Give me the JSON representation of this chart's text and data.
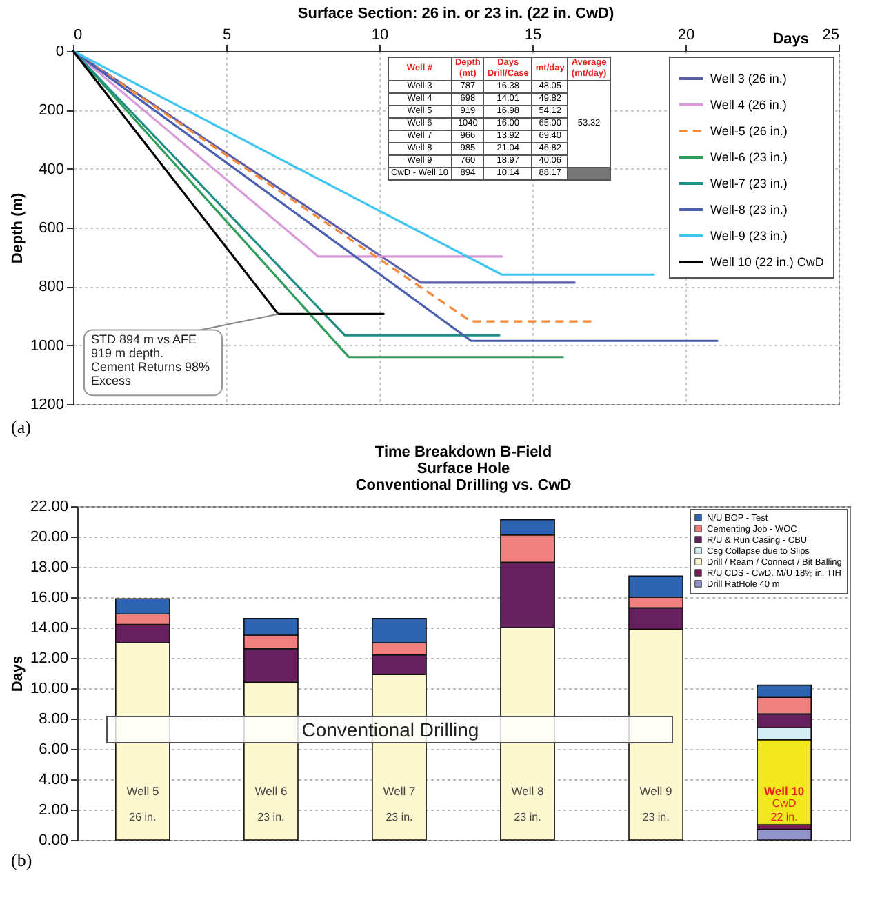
{
  "chart_data": [
    {
      "type": "line",
      "title": "Surface Section: 26 in. or 23 in. (22 in. CwD)",
      "xlabel": "Days",
      "ylabel": "Depth (m)",
      "xlim": [
        0,
        25
      ],
      "xticks": [
        0,
        5,
        10,
        15,
        20,
        25
      ],
      "ylim": [
        1200,
        0
      ],
      "yticks": [
        0,
        200,
        400,
        600,
        800,
        1000,
        1200
      ],
      "grid": true,
      "legend": "top right",
      "series": [
        {
          "name": "Well 3 (26 in.)",
          "color": "#5b5fa8",
          "line_style": "solid",
          "x": [
            0,
            11.35,
            16.38
          ],
          "values": [
            0,
            787,
            787
          ]
        },
        {
          "name": "Well 4 (26 in.)",
          "color": "#d99ad9",
          "line_style": "solid",
          "x": [
            0,
            8.0,
            14.01
          ],
          "values": [
            0,
            698,
            698
          ]
        },
        {
          "name": "Well-5 (26 in.)",
          "color": "#f58a3c",
          "line_style": "dashed",
          "x": [
            0,
            13.0,
            16.98
          ],
          "values": [
            0,
            919,
            919
          ]
        },
        {
          "name": "Well-6 (23 in.)",
          "color": "#2e9e5a",
          "line_style": "solid",
          "x": [
            0,
            9.0,
            16.0
          ],
          "values": [
            0,
            1040,
            1040
          ]
        },
        {
          "name": "Well-7 (23 in.)",
          "color": "#1f8f86",
          "line_style": "solid",
          "x": [
            0,
            8.87,
            13.92
          ],
          "values": [
            0,
            966,
            966
          ]
        },
        {
          "name": "Well-8 (23 in.)",
          "color": "#4a5fb0",
          "line_style": "solid",
          "x": [
            0,
            13.0,
            21.04
          ],
          "values": [
            0,
            985,
            985
          ]
        },
        {
          "name": "Well-9 (23 in.)",
          "color": "#3fc6f0",
          "line_style": "solid",
          "x": [
            0,
            14.0,
            18.97
          ],
          "values": [
            0,
            760,
            760
          ]
        },
        {
          "name": "Well 10 (22 in.) CwD",
          "color": "#000000",
          "line_style": "solid",
          "x": [
            0,
            6.7,
            10.14
          ],
          "values": [
            0,
            894,
            894
          ]
        }
      ],
      "annotations": [
        {
          "text": "STD 894 m vs AFE\n919 m depth.\nCement Returns 98%\nExcess",
          "x": 6.7,
          "y": 894
        },
        "(a)",
        "Well #",
        "Depth\n(mt)",
        "Days\nDrill/Case",
        "mt/day",
        "Average\n(mt/day)",
        "Well 3",
        "787",
        "16.38",
        "48.05",
        "Well 4",
        "698",
        "14.01",
        "49.82",
        "Well 5",
        "919",
        "16.98",
        "54.12",
        "Well 6",
        "1040",
        "16.00",
        "65.00",
        "Well 7",
        "966",
        "13.92",
        "69.40",
        "Well 8",
        "985",
        "21.04",
        "46.82",
        "Well 9",
        "760",
        "18.97",
        "40.06",
        "CwD - Well 10",
        "894",
        "10.14",
        "88.17",
        "53.32"
      ]
    },
    {
      "type": "bar",
      "stacked": true,
      "title": "Time Breakdown B-Field\nSurface Hole\nConventional Drilling vs. CwD",
      "ylabel": "Days",
      "categories": [
        "Well 5",
        "Well 6",
        "Well 7",
        "Well 8",
        "Well 9",
        "Well 10"
      ],
      "ylim": [
        0,
        22
      ],
      "yticks": [
        {
          "value": 0,
          "label": "0.00"
        },
        {
          "value": 2,
          "label": "2.00"
        },
        {
          "value": 4,
          "label": "4.00"
        },
        {
          "value": 6,
          "label": "6.00"
        },
        {
          "value": 8,
          "label": "8.00"
        },
        {
          "value": 10,
          "label": "10.00"
        },
        {
          "value": 12,
          "label": "12.00"
        },
        {
          "value": 14,
          "label": "14.00"
        },
        {
          "value": 16,
          "label": "16.00"
        },
        {
          "value": 18,
          "label": "18.00"
        },
        {
          "value": 20,
          "label": "20.00"
        },
        {
          "value": 22,
          "label": "22.00"
        }
      ],
      "grid": "y",
      "legend": "top right",
      "series": [
        {
          "name": "Drill RatHole 40 m",
          "color": "#9494cc",
          "values": [
            null,
            null,
            null,
            null,
            null,
            0.7
          ]
        },
        {
          "name": "R/U CDS - CwD. M/U 18⅝ in. TIH",
          "color": "#7a1d5a",
          "values": [
            null,
            null,
            null,
            null,
            null,
            0.3
          ]
        },
        {
          "name": "Drill / Ream / Connect / Bit Balling",
          "color": "#fdf8cf",
          "colors": [
            "#fdf8cf",
            "#fdf8cf",
            "#fdf8cf",
            "#fdf8cf",
            "#fdf8cf",
            "#f2e81e"
          ],
          "values": [
            13.0,
            10.4,
            10.9,
            14.0,
            13.9,
            5.6
          ]
        },
        {
          "name": "Csg Collapse due to Slips",
          "color": "#d4eef5",
          "values": [
            null,
            null,
            null,
            null,
            null,
            0.8
          ]
        },
        {
          "name": "R/U & Run Casing - CBU",
          "color": "#66205e",
          "values": [
            1.2,
            2.2,
            1.3,
            4.3,
            1.4,
            0.9
          ]
        },
        {
          "name": "Cementing Job - WOC",
          "color": "#f08080",
          "values": [
            0.7,
            0.9,
            0.8,
            1.8,
            0.7,
            1.1
          ]
        },
        {
          "name": "N/U BOP - Test",
          "color": "#2e64b0",
          "values": [
            1.0,
            1.1,
            1.6,
            1.0,
            1.4,
            0.8
          ]
        }
      ],
      "annotations": [
        "(b)",
        "Conventional Drilling",
        "26 in.",
        "23 in.",
        "23 in.",
        "23 in.",
        "23 in.",
        "CwD",
        "22 in."
      ]
    }
  ]
}
